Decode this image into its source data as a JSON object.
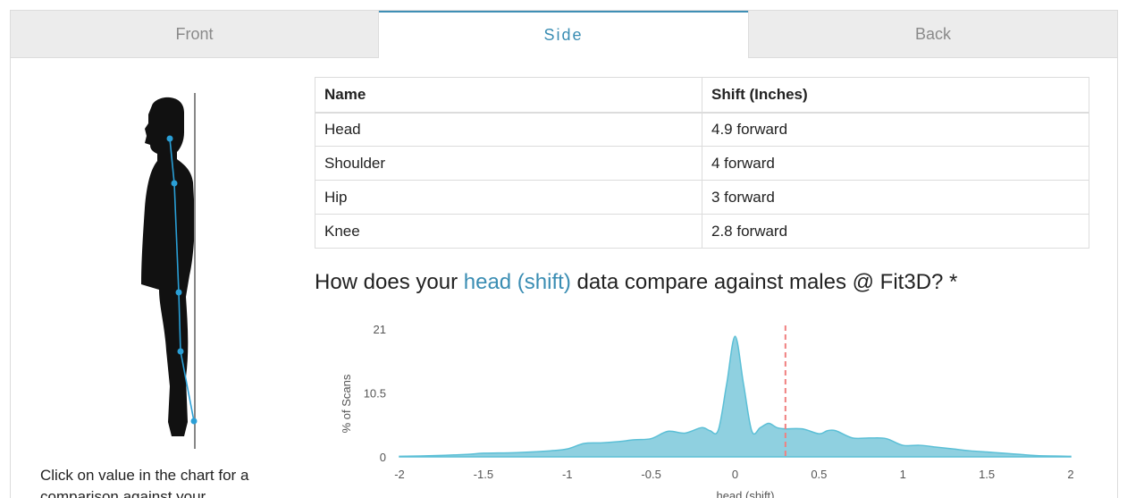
{
  "tabs": [
    {
      "label": "Front"
    },
    {
      "label": "Side"
    },
    {
      "label": "Back"
    }
  ],
  "active_tab": "Side",
  "table": {
    "headers": [
      "Name",
      "Shift (Inches)"
    ],
    "rows": [
      [
        "Head",
        "4.9 forward"
      ],
      [
        "Shoulder",
        "4 forward"
      ],
      [
        "Hip",
        "3 forward"
      ],
      [
        "Knee",
        "2.8 forward"
      ]
    ]
  },
  "question": {
    "prefix": "How does your ",
    "highlight": "head (shift)",
    "suffix": " data compare against males @ Fit3D? *"
  },
  "hint_text": "Click on value in the chart for a comparison against your",
  "colors": {
    "accent": "#3a8db3",
    "area_fill": "#8fd0e0",
    "area_stroke": "#5bbfd6",
    "marker": "#f08080",
    "posture_line": "#2a9fd6"
  },
  "chart_data": {
    "type": "area",
    "xlabel": "head (shift)",
    "ylabel": "% of Scans",
    "xlim": [
      -2,
      2
    ],
    "ylim": [
      0,
      21
    ],
    "x_ticks": [
      "-2",
      "-1.5",
      "-1",
      "-0.5",
      "0",
      "0.5",
      "1",
      "1.5",
      "2"
    ],
    "y_ticks": [
      "0",
      "10.5",
      "21"
    ],
    "marker_x": 0.3,
    "series": [
      {
        "x": [
          -2,
          -1.8,
          -1.6,
          -1.5,
          -1.3,
          -1.1,
          -1.0,
          -0.9,
          -0.8,
          -0.7,
          -0.6,
          -0.5,
          -0.4,
          -0.3,
          -0.2,
          -0.15,
          -0.1,
          -0.05,
          0,
          0.05,
          0.1,
          0.15,
          0.2,
          0.25,
          0.3,
          0.4,
          0.5,
          0.55,
          0.6,
          0.7,
          0.8,
          0.9,
          1.0,
          1.1,
          1.2,
          1.3,
          1.4,
          1.5,
          1.6,
          1.7,
          1.8,
          2.0
        ],
        "y": [
          0.1,
          0.2,
          0.4,
          0.6,
          0.7,
          1.0,
          1.3,
          2.2,
          2.3,
          2.5,
          2.8,
          3.0,
          4.2,
          3.9,
          4.8,
          4.3,
          4.4,
          12.0,
          19.8,
          12.0,
          4.2,
          4.8,
          5.5,
          4.8,
          4.6,
          4.6,
          3.8,
          4.3,
          4.3,
          3.1,
          3.1,
          3.0,
          1.9,
          1.9,
          1.6,
          1.3,
          1.0,
          0.8,
          0.6,
          0.4,
          0.2,
          0.1
        ]
      }
    ]
  }
}
